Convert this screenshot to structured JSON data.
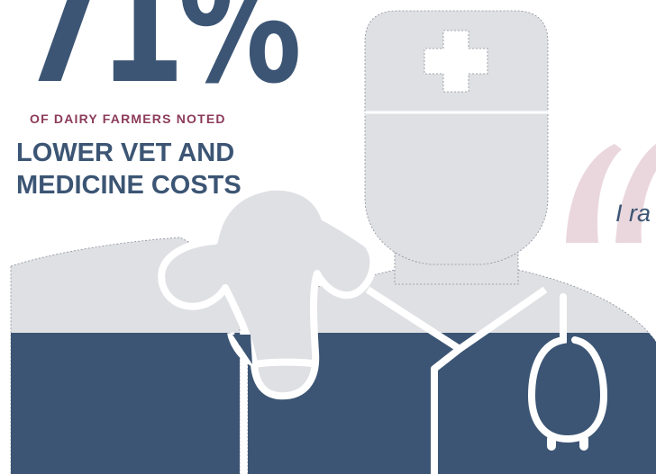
{
  "stat": {
    "value": "71%",
    "subhead": "OF DAIRY FARMERS NOTED",
    "headline_line1": "LOWER VET AND",
    "headline_line2": "MEDICINE COSTS"
  },
  "quote": {
    "text": "I ra"
  },
  "colors": {
    "navy": "#3c5574",
    "maroon": "#8c3b5a",
    "light_gray": "#dfe0e4",
    "quote_pink": "#ead7dd",
    "outline": "#ffffff"
  },
  "icons": [
    "vet-icon",
    "medical-cross-icon",
    "stethoscope-icon",
    "cow-head-icon",
    "quote-mark-icon"
  ]
}
